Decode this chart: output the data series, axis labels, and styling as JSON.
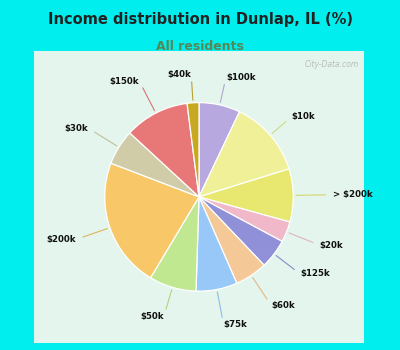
{
  "title": "Income distribution in Dunlap, IL (%)",
  "subtitle": "All residents",
  "bg_outer": "#00EEEE",
  "bg_inner_top": "#e8f5f0",
  "bg_inner_bot": "#d0eee0",
  "watermark": "City-Data.com",
  "slices": [
    {
      "label": "$100k",
      "value": 7.0,
      "color": "#b8a8e0",
      "lc": "#a898c8"
    },
    {
      "label": "$10k",
      "value": 13.0,
      "color": "#f0f098",
      "lc": "#c8d870"
    },
    {
      "label": "> $200k",
      "value": 9.0,
      "color": "#e8e870",
      "lc": "#d0d050"
    },
    {
      "label": "$20k",
      "value": 3.5,
      "color": "#f0b8c8",
      "lc": "#e0a8b8"
    },
    {
      "label": "$125k",
      "value": 5.0,
      "color": "#9090d8",
      "lc": "#7878c0"
    },
    {
      "label": "$60k",
      "value": 5.5,
      "color": "#f5c898",
      "lc": "#e0b078"
    },
    {
      "label": "$75k",
      "value": 7.0,
      "color": "#98c8f8",
      "lc": "#80b0e8"
    },
    {
      "label": "$50k",
      "value": 8.0,
      "color": "#c0e890",
      "lc": "#a0d070"
    },
    {
      "label": "$200k",
      "value": 22.0,
      "color": "#f8c868",
      "lc": "#e0a840"
    },
    {
      "label": "$30k",
      "value": 6.0,
      "color": "#d0cca8",
      "lc": "#b8b890"
    },
    {
      "label": "$150k",
      "value": 11.0,
      "color": "#e87878",
      "lc": "#d06060"
    },
    {
      "label": "$40k",
      "value": 2.0,
      "color": "#c8a820",
      "lc": "#b09010"
    }
  ]
}
